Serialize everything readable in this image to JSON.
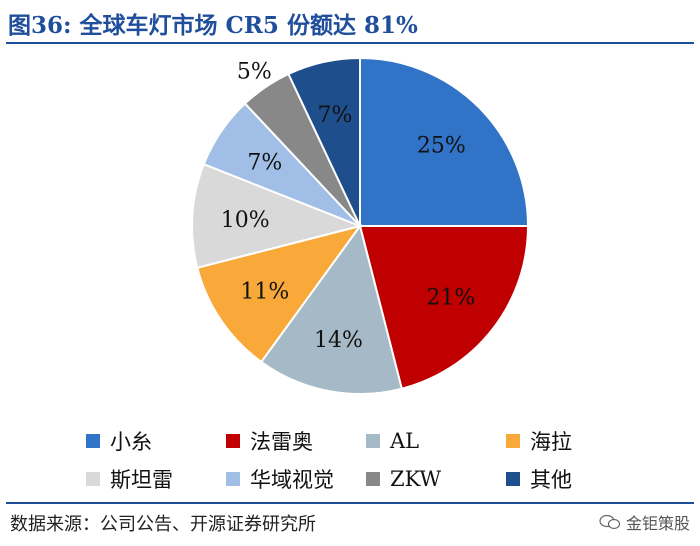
{
  "title": "图36:  全球车灯市场 CR5 份额达 81%",
  "source": "数据来源：公司公告、开源证券研究所",
  "watermark": "金钜策股",
  "chart_data": {
    "type": "pie",
    "start_angle_deg": 0,
    "direction": "clockwise",
    "slices": [
      {
        "label": "小糸",
        "value": 25,
        "pct_label": "25%",
        "color": "#3173c6"
      },
      {
        "label": "法雷奥",
        "value": 21,
        "pct_label": "21%",
        "color": "#c00000"
      },
      {
        "label": "AL",
        "value": 14,
        "pct_label": "14%",
        "color": "#a6b9c6"
      },
      {
        "label": "海拉",
        "value": 11,
        "pct_label": "11%",
        "color": "#f8a93a"
      },
      {
        "label": "斯坦雷",
        "value": 10,
        "pct_label": "10%",
        "color": "#d9d9d9"
      },
      {
        "label": "华域视觉",
        "value": 7,
        "pct_label": "7%",
        "color": "#a0bee6"
      },
      {
        "label": "ZKW",
        "value": 5,
        "pct_label": "5%",
        "color": "#888888"
      },
      {
        "label": "其他",
        "value": 7,
        "pct_label": "7%",
        "color": "#1f4e8c"
      }
    ],
    "legend_position": "bottom"
  }
}
